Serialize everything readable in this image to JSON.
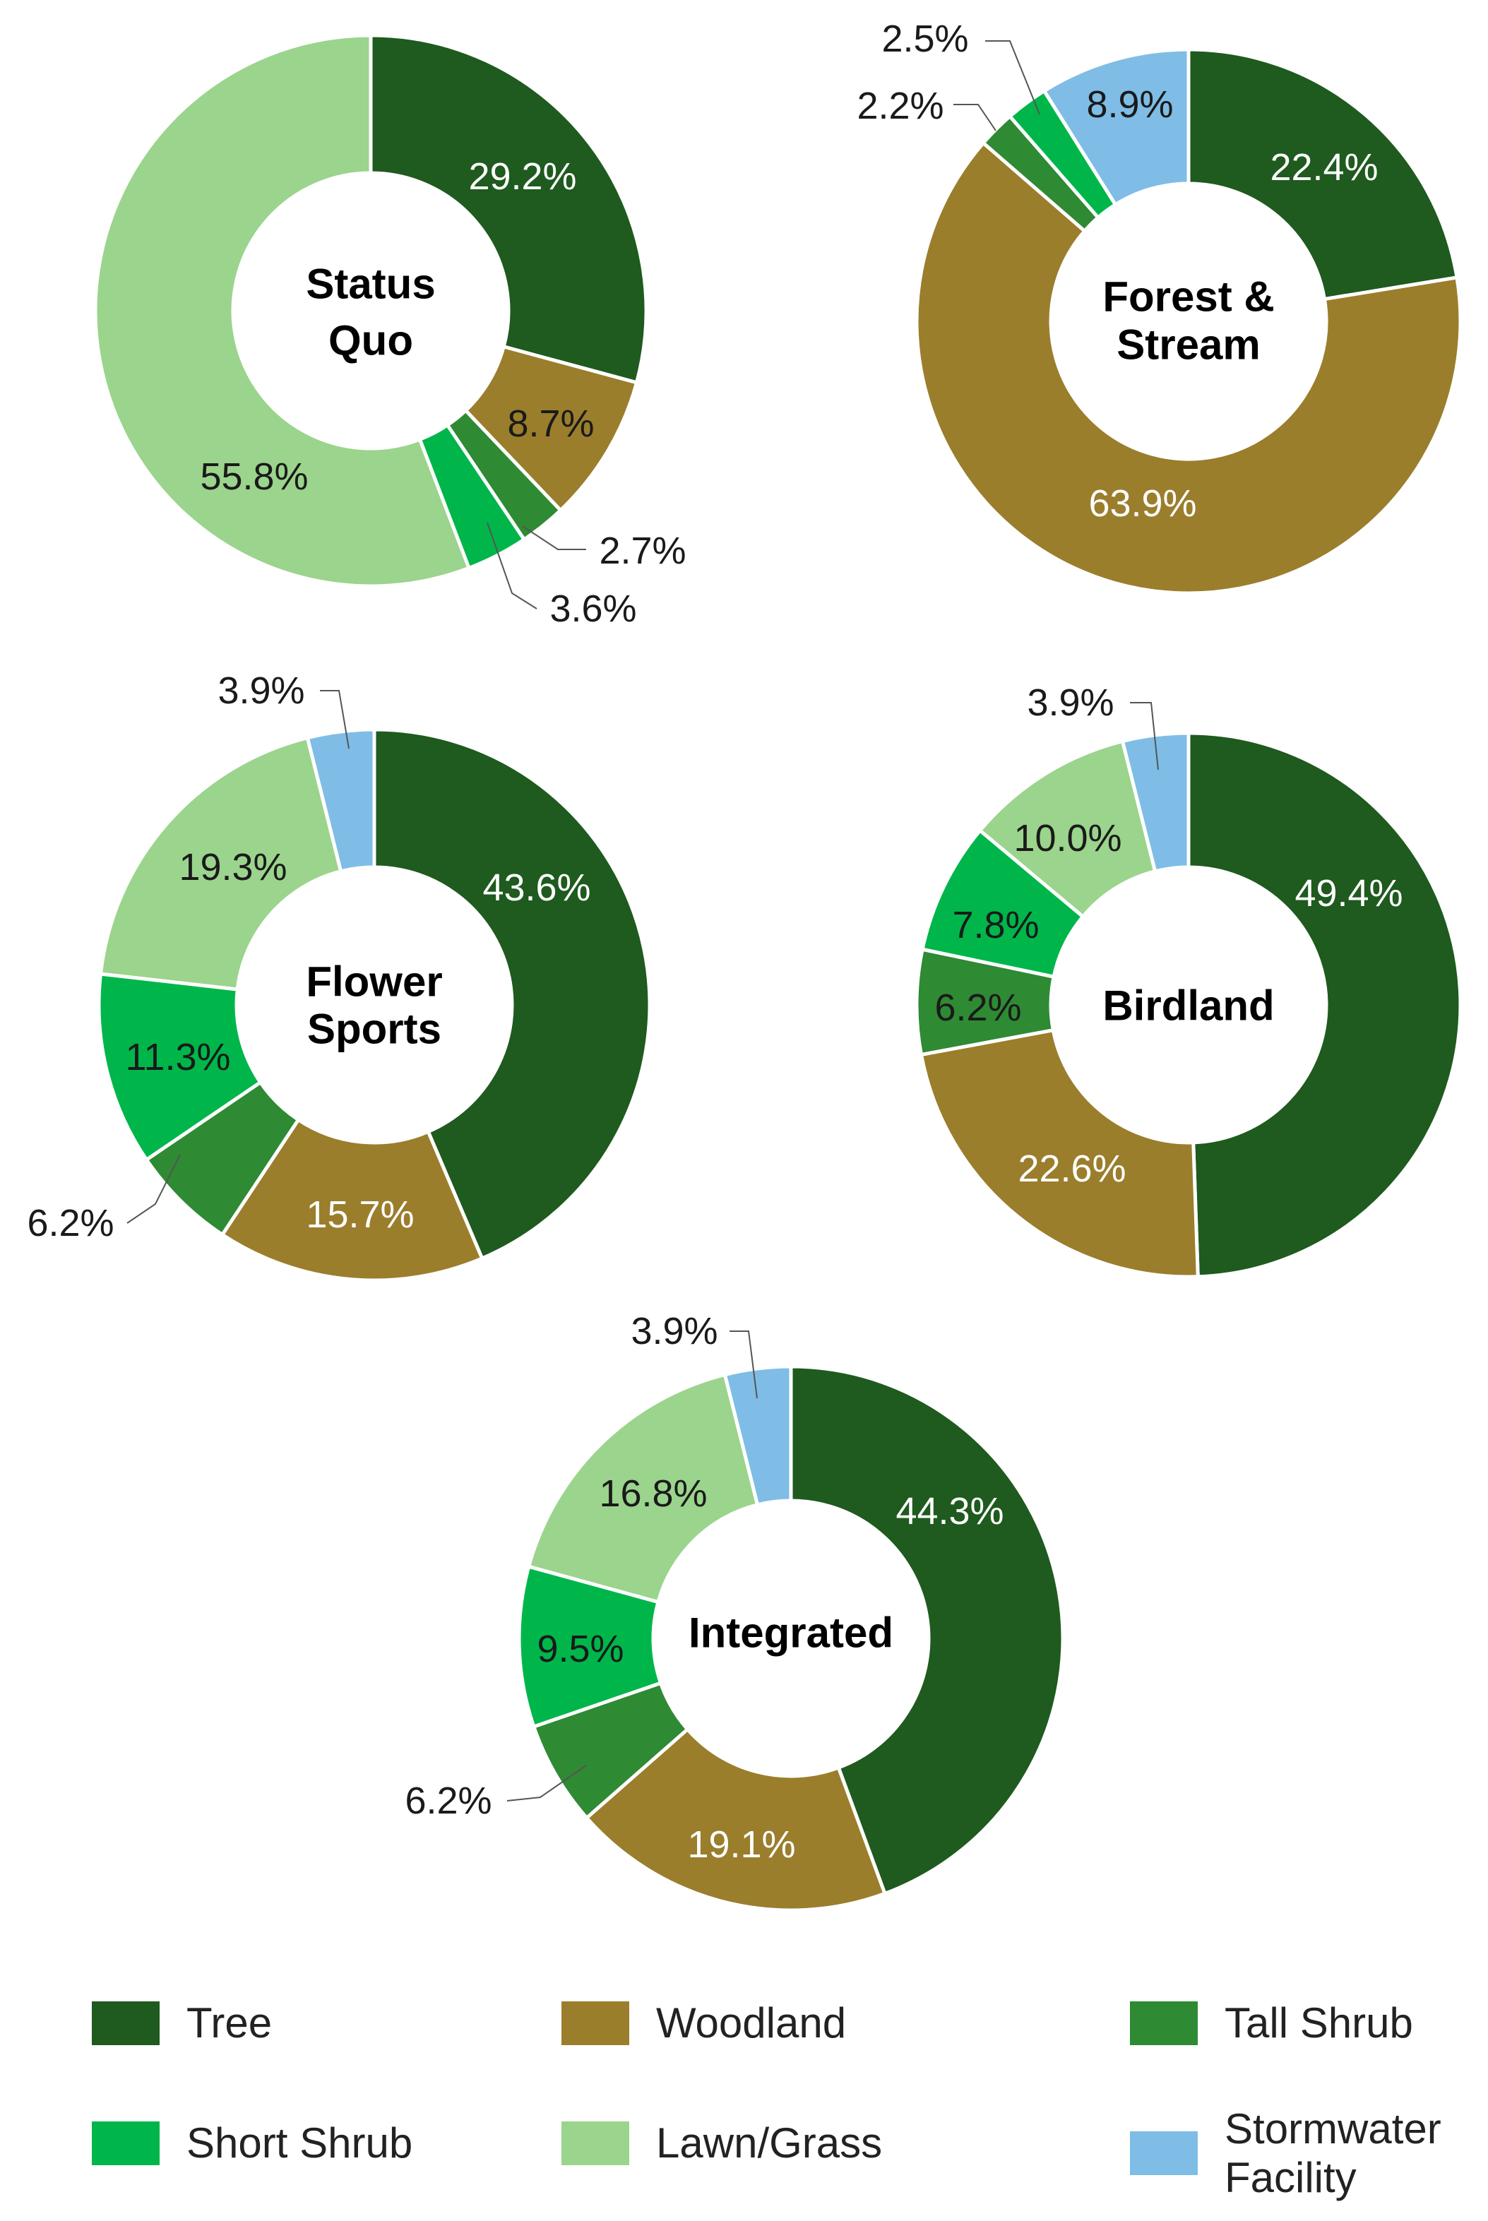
{
  "colors": {
    "Tree": "#1f5a1f",
    "Woodland": "#9a7e2c",
    "Tall Shrub": "#2e8a33",
    "Short Shrub": "#00b64a",
    "Lawn/Grass": "#9bd48c",
    "Stormwater Facility": "#7fbde6"
  },
  "legend": {
    "items": [
      {
        "label": "Tree",
        "category": "Tree"
      },
      {
        "label": "Woodland",
        "category": "Woodland"
      },
      {
        "label": "Tall Shrub",
        "category": "Tall Shrub"
      },
      {
        "label": "Short Shrub",
        "category": "Short Shrub"
      },
      {
        "label": "Lawn/Grass",
        "category": "Lawn/Grass"
      },
      {
        "label": "Stormwater\nFacility",
        "category": "Stormwater Facility"
      }
    ]
  },
  "chart_data": [
    {
      "type": "pie",
      "center_label": [
        "Status",
        "Quo"
      ],
      "slices": [
        {
          "category": "Tree",
          "value": 29.2,
          "label": "29.2%"
        },
        {
          "category": "Woodland",
          "value": 8.7,
          "label": "8.7%"
        },
        {
          "category": "Tall Shrub",
          "value": 2.7,
          "label": "2.7%"
        },
        {
          "category": "Short Shrub",
          "value": 3.6,
          "label": "3.6%"
        },
        {
          "category": "Lawn/Grass",
          "value": 55.8,
          "label": "55.8%"
        }
      ]
    },
    {
      "type": "pie",
      "center_label": [
        "Forest &",
        "Stream"
      ],
      "slices": [
        {
          "category": "Tree",
          "value": 22.4,
          "label": "22.4%"
        },
        {
          "category": "Woodland",
          "value": 63.9,
          "label": "63.9%"
        },
        {
          "category": "Tall Shrub",
          "value": 2.2,
          "label": "2.2%"
        },
        {
          "category": "Short Shrub",
          "value": 2.5,
          "label": "2.5%"
        },
        {
          "category": "Stormwater Facility",
          "value": 8.9,
          "label": "8.9%"
        }
      ]
    },
    {
      "type": "pie",
      "center_label": [
        "Flower",
        "Sports"
      ],
      "slices": [
        {
          "category": "Tree",
          "value": 43.6,
          "label": "43.6%"
        },
        {
          "category": "Woodland",
          "value": 15.7,
          "label": "15.7%"
        },
        {
          "category": "Tall Shrub",
          "value": 6.2,
          "label": "6.2%"
        },
        {
          "category": "Short Shrub",
          "value": 11.3,
          "label": "11.3%"
        },
        {
          "category": "Lawn/Grass",
          "value": 19.3,
          "label": "19.3%"
        },
        {
          "category": "Stormwater Facility",
          "value": 3.9,
          "label": "3.9%"
        }
      ]
    },
    {
      "type": "pie",
      "center_label": [
        "Birdland"
      ],
      "slices": [
        {
          "category": "Tree",
          "value": 49.4,
          "label": "49.4%"
        },
        {
          "category": "Woodland",
          "value": 22.6,
          "label": "22.6%"
        },
        {
          "category": "Tall Shrub",
          "value": 6.2,
          "label": "6.2%"
        },
        {
          "category": "Short Shrub",
          "value": 7.8,
          "label": "7.8%"
        },
        {
          "category": "Lawn/Grass",
          "value": 10.0,
          "label": "10.0%"
        },
        {
          "category": "Stormwater Facility",
          "value": 3.9,
          "label": "3.9%"
        }
      ]
    },
    {
      "type": "pie",
      "center_label": [
        "Integrated"
      ],
      "slices": [
        {
          "category": "Tree",
          "value": 44.3,
          "label": "44.3%"
        },
        {
          "category": "Woodland",
          "value": 19.1,
          "label": "19.1%"
        },
        {
          "category": "Tall Shrub",
          "value": 6.2,
          "label": "6.2%"
        },
        {
          "category": "Short Shrub",
          "value": 9.5,
          "label": "9.5%"
        },
        {
          "category": "Lawn/Grass",
          "value": 16.8,
          "label": "16.8%"
        },
        {
          "category": "Stormwater Facility",
          "value": 3.9,
          "label": "3.9%"
        }
      ]
    }
  ]
}
